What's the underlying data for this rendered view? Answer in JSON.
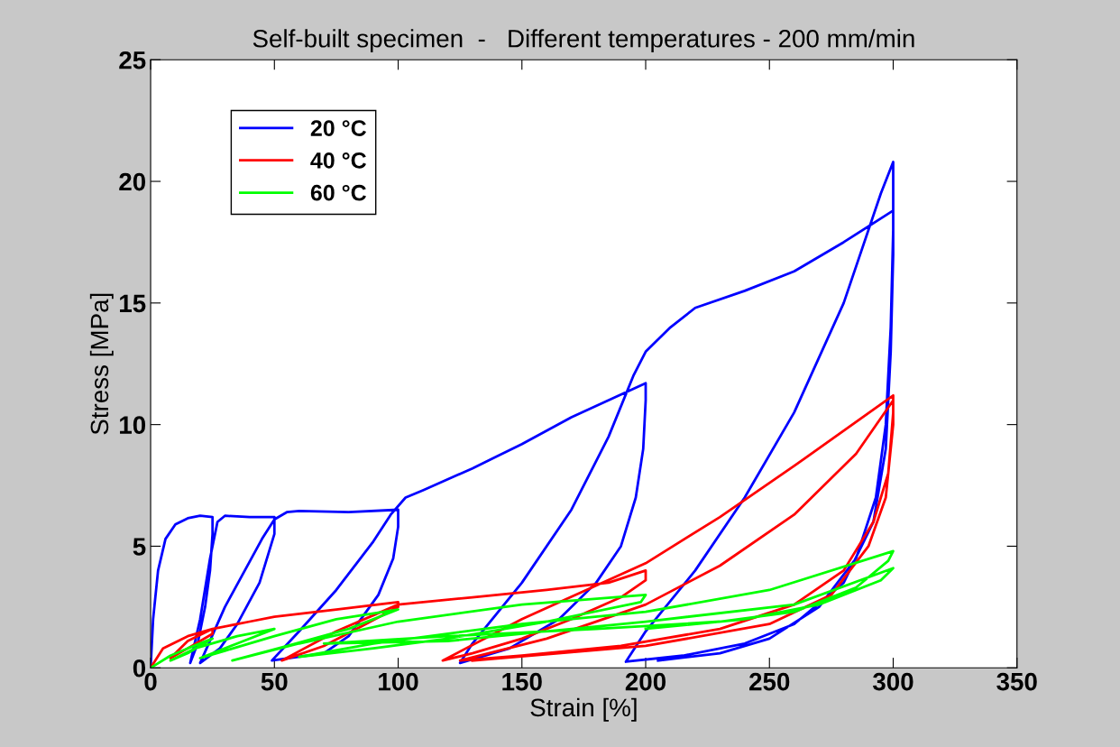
{
  "chart_data": {
    "type": "line",
    "title": "Self-built specimen  -   Different temperatures - 200 mm/min",
    "xlabel": "Strain [%]",
    "ylabel": "Stress [MPa]",
    "xlim": [
      0,
      350
    ],
    "xticks": [
      0,
      50,
      100,
      150,
      200,
      250,
      300,
      350
    ],
    "ylim": [
      0,
      25
    ],
    "yticks": [
      0,
      5,
      10,
      15,
      20,
      25
    ],
    "grid": false,
    "legend": "top left",
    "marker": "none",
    "line_style": "solid",
    "series": [
      {
        "name": "20 °C",
        "color": "#0000ff",
        "x": [
          0,
          1,
          3,
          6,
          10,
          15,
          20,
          25,
          25,
          24,
          22,
          19,
          16,
          20,
          24,
          27,
          30,
          40,
          50,
          50,
          44,
          35,
          28,
          20,
          30,
          45,
          50,
          55,
          60,
          80,
          100,
          100,
          98,
          92,
          80,
          70,
          49,
          60,
          75,
          90,
          97,
          103,
          110,
          130,
          150,
          170,
          200,
          200,
          199,
          196,
          190,
          180,
          165,
          145,
          125,
          130,
          150,
          170,
          185,
          195,
          200,
          210,
          220,
          240,
          260,
          280,
          300,
          300,
          299,
          297,
          292,
          280,
          260,
          240,
          215,
          192,
          200,
          220,
          240,
          260,
          280,
          295,
          300,
          300,
          299,
          297,
          293,
          285,
          270,
          250,
          230,
          205
        ],
        "values": [
          0,
          2,
          4,
          5.3,
          5.9,
          6.15,
          6.25,
          6.2,
          5.5,
          4,
          2.5,
          1,
          0.2,
          2,
          4.5,
          6,
          6.25,
          6.2,
          6.2,
          5.5,
          3.5,
          1.8,
          0.8,
          0.2,
          2.5,
          5.3,
          6.1,
          6.4,
          6.45,
          6.4,
          6.5,
          5.8,
          4.5,
          3,
          1.3,
          0.6,
          0.3,
          1.5,
          3.2,
          5.2,
          6.3,
          7,
          7.3,
          8.2,
          9.2,
          10.3,
          11.7,
          11,
          9,
          7,
          5,
          3.5,
          2,
          0.8,
          0.2,
          1,
          3.5,
          6.5,
          9.5,
          12,
          13,
          14,
          14.8,
          15.5,
          16.3,
          17.5,
          18.8,
          17,
          13,
          9,
          6,
          3.5,
          1.8,
          1,
          0.5,
          0.25,
          1.5,
          4,
          7,
          10.5,
          15,
          19.5,
          20.8,
          18,
          14,
          10,
          7,
          4.5,
          2.5,
          1.2,
          0.6,
          0.3
        ]
      },
      {
        "name": "40 °C",
        "color": "#ff0000",
        "x": [
          0,
          5,
          15,
          25,
          25,
          15,
          8,
          15,
          25,
          40,
          50,
          75,
          100,
          100,
          85,
          70,
          53,
          75,
          100,
          130,
          160,
          185,
          200,
          200,
          190,
          170,
          150,
          130,
          118,
          150,
          200,
          230,
          260,
          300,
          300,
          298,
          292,
          280,
          260,
          230,
          190,
          150,
          125,
          160,
          200,
          230,
          260,
          285,
          300,
          300,
          297,
          290,
          275,
          250,
          200,
          130
        ],
        "values": [
          0,
          0.8,
          1.3,
          1.6,
          1.4,
          0.8,
          0.4,
          1.1,
          1.6,
          1.9,
          2.1,
          2.4,
          2.7,
          2.5,
          1.7,
          0.9,
          0.3,
          1.5,
          2.6,
          2.9,
          3.2,
          3.5,
          4.0,
          3.6,
          2.9,
          2.0,
          1.2,
          0.6,
          0.3,
          2.0,
          4.3,
          6.2,
          8.3,
          11.2,
          10.5,
          8,
          6,
          4,
          2.6,
          1.6,
          0.9,
          0.5,
          0.3,
          1.2,
          2.6,
          4.2,
          6.3,
          8.8,
          11,
          10,
          7,
          5,
          3,
          1.8,
          0.9,
          0.3
        ]
      },
      {
        "name": "60 °C",
        "color": "#00ff00",
        "x": [
          0,
          8,
          15,
          25,
          15,
          8,
          18,
          35,
          50,
          35,
          20,
          30,
          50,
          75,
          100,
          80,
          55,
          33,
          60,
          100,
          150,
          200,
          198,
          160,
          120,
          90,
          60,
          90,
          150,
          200,
          250,
          300,
          298,
          285,
          260,
          230,
          180,
          120,
          70,
          120,
          200,
          260,
          300,
          295,
          270,
          240,
          200
        ],
        "values": [
          0,
          0.5,
          0.8,
          1.2,
          0.6,
          0.3,
          0.8,
          1.3,
          1.6,
          1.0,
          0.4,
          0.7,
          1.3,
          2.0,
          2.4,
          1.6,
          0.9,
          0.3,
          1.0,
          1.9,
          2.6,
          3.0,
          2.7,
          1.9,
          1.2,
          0.8,
          0.45,
          1.0,
          1.8,
          2.3,
          3.2,
          4.8,
          4.4,
          3.3,
          2.3,
          1.9,
          1.6,
          1.3,
          1.0,
          1.1,
          1.9,
          2.6,
          4.1,
          3.6,
          2.6,
          2.0,
          1.6
        ]
      }
    ]
  }
}
